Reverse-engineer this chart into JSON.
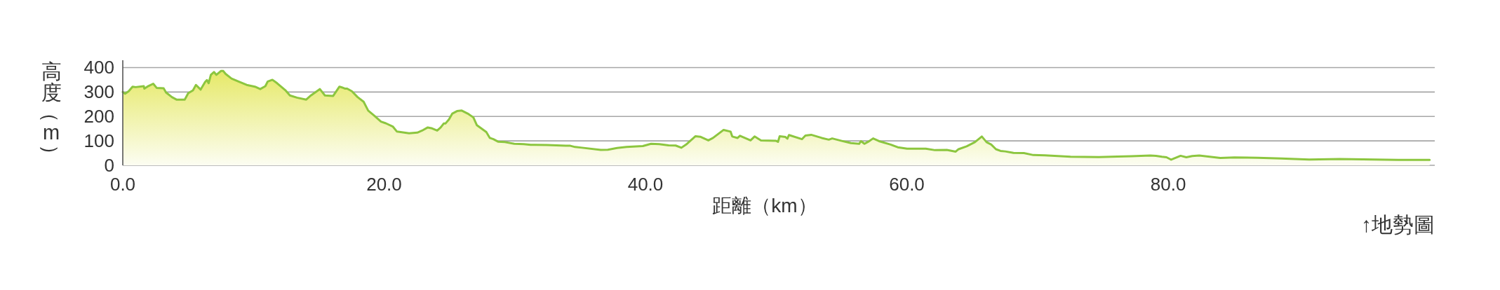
{
  "chart_data": {
    "type": "area",
    "xlabel": "距離（km）",
    "ylabel": "高度（m）",
    "annotations": [
      "↑地勢圖"
    ],
    "x": [
      0.0,
      0.18,
      0.45,
      0.75,
      0.98,
      1.61,
      1.65,
      1.88,
      2.33,
      2.59,
      3.13,
      3.31,
      3.76,
      4.11,
      4.74,
      5.01,
      5.37,
      5.6,
      5.96,
      6.3,
      6.44,
      6.57,
      6.74,
      6.98,
      7.16,
      7.51,
      7.69,
      7.87,
      8.32,
      8.86,
      9.48,
      10.11,
      10.52,
      10.91,
      11.09,
      11.45,
      11.81,
      12.43,
      12.79,
      13.33,
      14.04,
      14.4,
      15.08,
      15.47,
      16.1,
      16.58,
      16.76,
      16.99,
      17.17,
      17.53,
      17.97,
      18.43,
      18.78,
      19.23,
      19.76,
      20.13,
      20.66,
      20.98,
      21.91,
      22.54,
      22.9,
      23.34,
      23.61,
      24.06,
      24.33,
      24.56,
      24.69,
      24.96,
      25.22,
      25.58,
      25.94,
      26.39,
      26.83,
      27.1,
      27.82,
      28.09,
      28.36,
      28.71,
      29.25,
      29.96,
      30.68,
      31.22,
      32.46,
      33.9,
      34.25,
      34.61,
      35.15,
      36.58,
      37.12,
      37.83,
      38.55,
      39.8,
      40.43,
      41.05,
      41.77,
      42.31,
      42.75,
      43.11,
      43.83,
      44.19,
      44.81,
      45.17,
      45.98,
      46.51,
      46.64,
      47.05,
      47.23,
      48.04,
      48.35,
      48.84,
      50.0,
      50.14,
      50.27,
      50.71,
      50.86,
      50.98,
      51.97,
      52.24,
      52.68,
      53.49,
      54.03,
      54.29,
      55.01,
      55.72,
      56.35,
      56.49,
      56.76,
      57.06,
      57.42,
      57.87,
      58.76,
      59.3,
      60.02,
      61.45,
      62.16,
      63.06,
      63.74,
      63.96,
      64.58,
      65.21,
      65.74,
      66.1,
      66.46,
      66.82,
      67.17,
      67.53,
      68.16,
      68.96,
      69.68,
      70.57,
      72.54,
      74.69,
      76.12,
      77.2,
      78.63,
      79.07,
      79.52,
      79.87,
      80.23,
      80.59,
      80.95,
      81.39,
      81.84,
      82.38,
      83.18,
      83.99,
      85.06,
      86.86,
      88.65,
      90.79,
      93.12,
      95.81,
      97.6,
      100.01
    ],
    "series": [
      {
        "color": "#8cc63f",
        "values": [
          300,
          293,
          303,
          322,
          320,
          324,
          314,
          322,
          334,
          317,
          315,
          298,
          279,
          269,
          269,
          295,
          307,
          329,
          310,
          341,
          349,
          336,
          370,
          382,
          370,
          386,
          386,
          374,
          355,
          343,
          329,
          322,
          312,
          324,
          343,
          350,
          336,
          308,
          286,
          277,
          269,
          286,
          312,
          286,
          284,
          322,
          319,
          314,
          314,
          303,
          279,
          260,
          224,
          204,
          179,
          172,
          159,
          138,
          131,
          134,
          142,
          155,
          152,
          142,
          155,
          171,
          171,
          188,
          212,
          222,
          224,
          212,
          196,
          164,
          136,
          112,
          107,
          97,
          95,
          88,
          87,
          84,
          83,
          80,
          80,
          75,
          72,
          63,
          64,
          71,
          75,
          79,
          88,
          87,
          82,
          81,
          72,
          85,
          119,
          117,
          102,
          112,
          145,
          138,
          118,
          112,
          121,
          102,
          118,
          102,
          100,
          96,
          119,
          116,
          109,
          124,
          107,
          122,
          125,
          112,
          105,
          110,
          100,
          91,
          88,
          99,
          88,
          97,
          110,
          99,
          85,
          74,
          68,
          68,
          62,
          63,
          56,
          66,
          78,
          95,
          118,
          95,
          85,
          66,
          59,
          57,
          51,
          50,
          42,
          41,
          35,
          34,
          36,
          37,
          40,
          39,
          35,
          33,
          23,
          31,
          39,
          33,
          38,
          40,
          35,
          30,
          32,
          31,
          28,
          24,
          26,
          24,
          22,
          22
        ]
      }
    ],
    "xlim": [
      0,
      100.4
    ],
    "ylim": [
      0,
      430
    ],
    "xticks": [
      {
        "value": 0,
        "label": "0.0"
      },
      {
        "value": 20,
        "label": "20.0"
      },
      {
        "value": 40,
        "label": "40.0"
      },
      {
        "value": 60,
        "label": "60.0"
      },
      {
        "value": 80,
        "label": "80.0"
      }
    ],
    "yticks": [
      0,
      100,
      200,
      300,
      400
    ],
    "grid": "y"
  }
}
